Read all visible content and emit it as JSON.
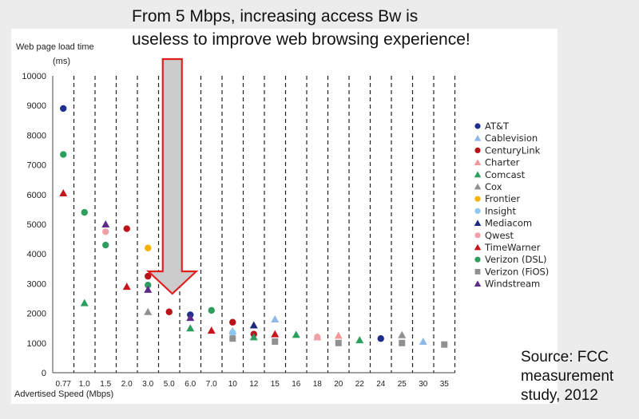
{
  "headline": {
    "line1": "From 5 Mbps, increasing access Bw is",
    "line2": "useless to improve web browsing experience!"
  },
  "source_note": {
    "line1": "Source: FCC",
    "line2": "measurement",
    "line3": "study, 2012"
  },
  "chart_data": {
    "type": "scatter",
    "ylabel_line1": "Web page load time",
    "ylabel_line2": "(ms)",
    "xlabel": "Advertised Speed (Mbps)",
    "ylim": [
      0,
      10000
    ],
    "yticks": [
      "0",
      "1000",
      "2000",
      "3000",
      "4000",
      "5000",
      "6000",
      "7000",
      "8000",
      "9000",
      "10000"
    ],
    "categories": [
      "0.77",
      "1.0",
      "1.5",
      "2.0",
      "3.0",
      "5.0",
      "6.0",
      "7.0",
      "10",
      "12",
      "15",
      "16",
      "18",
      "20",
      "22",
      "24",
      "25",
      "30",
      "35"
    ],
    "grid": "vertical dashed separators between categories",
    "legend_position": "right",
    "annotation": "downward arrow at 5.0 Mbps",
    "series": [
      {
        "name": "AT&T",
        "color": "#1f2f8f",
        "shape": "circle",
        "points": [
          {
            "x": "0.77",
            "y": 8900
          },
          {
            "x": "6.0",
            "y": 1950
          },
          {
            "x": "24",
            "y": 1150
          }
        ]
      },
      {
        "name": "Cablevision",
        "color": "#8fb8e8",
        "shape": "triangle",
        "points": [
          {
            "x": "10",
            "y": 1400
          },
          {
            "x": "15",
            "y": 1800
          },
          {
            "x": "30",
            "y": 1050
          }
        ]
      },
      {
        "name": "CenturyLink",
        "color": "#b8141a",
        "shape": "circle",
        "points": [
          {
            "x": "2.0",
            "y": 4850
          },
          {
            "x": "3.0",
            "y": 3250
          },
          {
            "x": "5.0",
            "y": 2050
          },
          {
            "x": "10",
            "y": 1700
          },
          {
            "x": "12",
            "y": 1300
          }
        ]
      },
      {
        "name": "Charter",
        "color": "#f09a96",
        "shape": "triangle",
        "points": [
          {
            "x": "18",
            "y": 1200
          },
          {
            "x": "20",
            "y": 1250
          }
        ]
      },
      {
        "name": "Comcast",
        "color": "#2e9e5e",
        "shape": "triangle",
        "points": [
          {
            "x": "1.0",
            "y": 2350
          },
          {
            "x": "6.0",
            "y": 1500
          },
          {
            "x": "12",
            "y": 1200
          },
          {
            "x": "16",
            "y": 1280
          },
          {
            "x": "22",
            "y": 1100
          }
        ]
      },
      {
        "name": "Cox",
        "color": "#909090",
        "shape": "triangle",
        "points": [
          {
            "x": "3.0",
            "y": 2050
          },
          {
            "x": "25",
            "y": 1270
          }
        ]
      },
      {
        "name": "Frontier",
        "color": "#f7b200",
        "shape": "circle",
        "points": [
          {
            "x": "3.0",
            "y": 4200
          }
        ]
      },
      {
        "name": "Insight",
        "color": "#8cc8f2",
        "shape": "circle",
        "points": [
          {
            "x": "10",
            "y": 1350
          }
        ]
      },
      {
        "name": "Mediacom",
        "color": "#1b2a80",
        "shape": "triangle",
        "points": [
          {
            "x": "12",
            "y": 1600
          }
        ]
      },
      {
        "name": "Qwest",
        "color": "#f2a0a8",
        "shape": "circle",
        "points": [
          {
            "x": "1.5",
            "y": 4750
          },
          {
            "x": "18",
            "y": 1200
          }
        ]
      },
      {
        "name": "TimeWarner",
        "color": "#c8141c",
        "shape": "triangle",
        "points": [
          {
            "x": "0.77",
            "y": 6050
          },
          {
            "x": "2.0",
            "y": 2900
          },
          {
            "x": "7.0",
            "y": 1420
          },
          {
            "x": "15",
            "y": 1300
          }
        ]
      },
      {
        "name": "Verizon (DSL)",
        "color": "#2e9e5e",
        "shape": "circle",
        "points": [
          {
            "x": "0.77",
            "y": 7350
          },
          {
            "x": "1.0",
            "y": 5400
          },
          {
            "x": "1.5",
            "y": 4300
          },
          {
            "x": "3.0",
            "y": 2950
          },
          {
            "x": "7.0",
            "y": 2100
          }
        ]
      },
      {
        "name": "Verizon (FiOS)",
        "color": "#909090",
        "shape": "square",
        "points": [
          {
            "x": "10",
            "y": 1150
          },
          {
            "x": "15",
            "y": 1050
          },
          {
            "x": "20",
            "y": 1000
          },
          {
            "x": "25",
            "y": 1000
          },
          {
            "x": "35",
            "y": 950
          }
        ]
      },
      {
        "name": "Windstream",
        "color": "#5f2a8a",
        "shape": "triangle",
        "points": [
          {
            "x": "1.5",
            "y": 5000
          },
          {
            "x": "3.0",
            "y": 2800
          },
          {
            "x": "6.0",
            "y": 1850
          }
        ]
      }
    ]
  }
}
